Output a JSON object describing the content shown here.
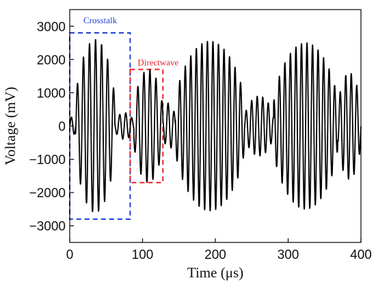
{
  "chart_data": {
    "type": "line",
    "xlabel": "Time (μs)",
    "ylabel": "Voltage (mV)",
    "xlim": [
      0,
      400
    ],
    "ylim": [
      -3500,
      3500
    ],
    "x_ticks": [
      0,
      100,
      200,
      300,
      400
    ],
    "y_ticks": [
      3000,
      2000,
      1000,
      0,
      -1000,
      -2000,
      -3000
    ],
    "x_tick_labels": [
      "0",
      "100",
      "200",
      "300",
      "400"
    ],
    "y_tick_labels": [
      "3000",
      "2000",
      "1000",
      "0",
      "−1000",
      "−2000",
      "−3000"
    ],
    "grid": false,
    "series": [
      {
        "color": "#000000",
        "signal_segments": [
          {
            "t_start": 0,
            "t_end": 8,
            "peak_mV": 300,
            "period_us": 8.5
          },
          {
            "t_start": 8,
            "t_end": 62,
            "peak_mV": 2600,
            "period_us": 8.3
          },
          {
            "t_start": 62,
            "t_end": 88,
            "peak_mV": 400,
            "period_us": 8.3
          },
          {
            "t_start": 88,
            "t_end": 128,
            "peak_mV": 1700,
            "period_us": 8.3
          },
          {
            "t_start": 128,
            "t_end": 145,
            "peak_mV": 700,
            "period_us": 8.3
          },
          {
            "t_start": 145,
            "t_end": 240,
            "peak_mV": 2550,
            "period_us": 7.6
          },
          {
            "t_start": 240,
            "t_end": 280,
            "peak_mV": 900,
            "period_us": 7.6
          },
          {
            "t_start": 280,
            "t_end": 368,
            "peak_mV": 2500,
            "period_us": 7.6
          },
          {
            "t_start": 368,
            "t_end": 400,
            "peak_mV": 1600,
            "period_us": 7.6
          }
        ]
      }
    ],
    "annotations": [
      {
        "label": "Crosstalk",
        "color": "#1f3fd6",
        "x_range": [
          0,
          83
        ],
        "y_range": [
          -2800,
          2800
        ]
      },
      {
        "label": "Directwave",
        "color": "#e8202a",
        "x_range": [
          83,
          128
        ],
        "y_range": [
          -1700,
          1700
        ]
      }
    ]
  }
}
